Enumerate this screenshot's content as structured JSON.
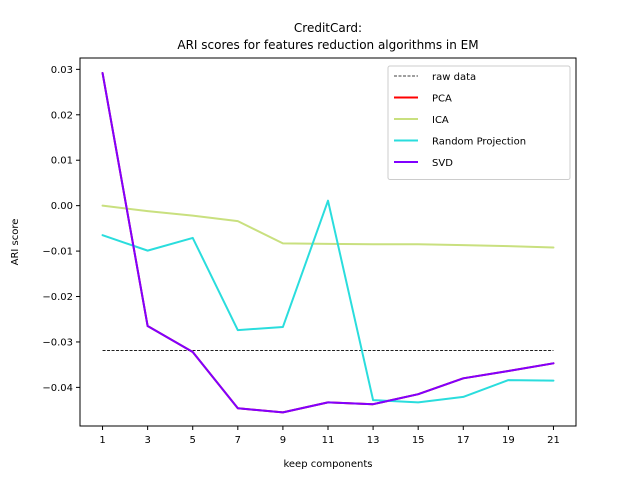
{
  "chart_data": {
    "type": "line",
    "title_line1": "CreditCard:",
    "title_line2": "ARI scores for features reduction algorithms in EM",
    "xlabel": "keep components",
    "ylabel": "ARI score",
    "x": [
      1,
      3,
      5,
      7,
      9,
      11,
      13,
      15,
      17,
      19,
      21
    ],
    "xlim": [
      0,
      22
    ],
    "ylim": [
      -0.0485,
      0.0325
    ],
    "yticks": [
      0.03,
      0.02,
      0.01,
      0.0,
      -0.01,
      -0.02,
      -0.03,
      -0.04
    ],
    "ytick_labels": [
      "0.03",
      "0.02",
      "0.01",
      "0.00",
      "−0.01",
      "−0.02",
      "−0.03",
      "−0.04"
    ],
    "xtick_labels": [
      "1",
      "3",
      "5",
      "7",
      "9",
      "11",
      "13",
      "15",
      "17",
      "19",
      "21"
    ],
    "legend_position": "top-right",
    "grid": false,
    "series": [
      {
        "name": "raw data",
        "color": "#000000",
        "dashed": true,
        "width": 0.8,
        "values": [
          -0.0319,
          -0.0319,
          -0.0319,
          -0.0319,
          -0.0319,
          -0.0319,
          -0.0319,
          -0.0319,
          -0.0319,
          -0.0319,
          -0.0319
        ]
      },
      {
        "name": "PCA",
        "color": "#ff0000",
        "dashed": false,
        "width": 2,
        "values": [
          0.0292,
          -0.0265,
          -0.0322,
          -0.0446,
          -0.0455,
          -0.0433,
          -0.0437,
          -0.0415,
          -0.038,
          -0.0364,
          -0.0347
        ]
      },
      {
        "name": "ICA",
        "color": "#c9e07f",
        "dashed": false,
        "width": 2,
        "values": [
          0.0,
          -0.0012,
          -0.0022,
          -0.0034,
          -0.0083,
          -0.0084,
          -0.0085,
          -0.0085,
          -0.0087,
          -0.0089,
          -0.0092
        ]
      },
      {
        "name": "Random Projection",
        "color": "#2adddd",
        "dashed": false,
        "width": 2,
        "values": [
          -0.0065,
          -0.0099,
          -0.0071,
          -0.0274,
          -0.0267,
          0.0011,
          -0.0428,
          -0.0433,
          -0.0421,
          -0.0384,
          -0.0385
        ]
      },
      {
        "name": "SVD",
        "color": "#8000ff",
        "dashed": false,
        "width": 2,
        "values": [
          0.0292,
          -0.0265,
          -0.0322,
          -0.0446,
          -0.0455,
          -0.0433,
          -0.0437,
          -0.0415,
          -0.038,
          -0.0364,
          -0.0347
        ]
      }
    ]
  }
}
